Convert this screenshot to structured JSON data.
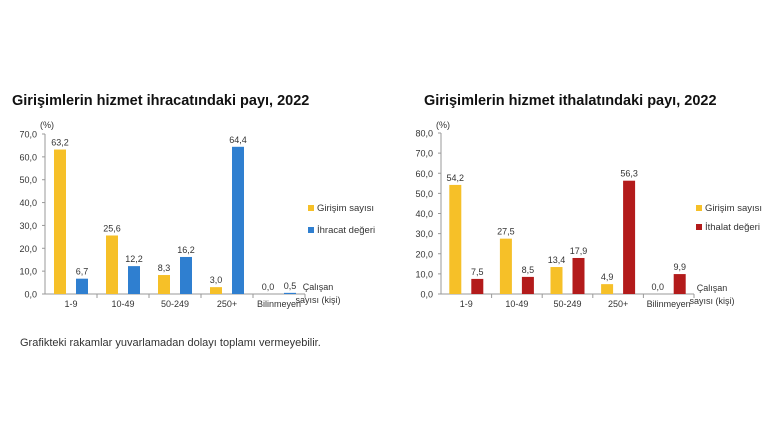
{
  "chart_data": [
    {
      "type": "bar",
      "title": "Girişimlerin hizmet ihracatındaki payı, 2022",
      "ylabel": "(%)",
      "xlabel": [
        "Çalışan",
        "sayısı (kişi)"
      ],
      "ylim": [
        0,
        70
      ],
      "yticks": [
        "0,0",
        "10,0",
        "20,0",
        "30,0",
        "40,0",
        "50,0",
        "60,0",
        "70,0"
      ],
      "categories": [
        "1-9",
        "10-49",
        "50-249",
        "250+",
        "Bilinmeyen"
      ],
      "series": [
        {
          "name": "Girişim sayısı",
          "color": "#f6c028",
          "values": [
            63.2,
            25.6,
            8.3,
            3.0,
            0.0
          ],
          "labels": [
            "63,2",
            "25,6",
            "8,3",
            "3,0",
            "0,0"
          ]
        },
        {
          "name": "İhracat değeri",
          "color": "#2f7fd0",
          "values": [
            6.7,
            12.2,
            16.2,
            64.4,
            0.5
          ],
          "labels": [
            "6,7",
            "12,2",
            "16,2",
            "64,4",
            "0,5"
          ]
        }
      ],
      "legend": "right"
    },
    {
      "type": "bar",
      "title": "Girişimlerin hizmet ithalatındaki payı, 2022",
      "ylabel": "(%)",
      "xlabel": [
        "Çalışan",
        "sayısı (kişi)"
      ],
      "ylim": [
        0,
        80
      ],
      "yticks": [
        "0,0",
        "10,0",
        "20,0",
        "30,0",
        "40,0",
        "50,0",
        "60,0",
        "70,0",
        "80,0"
      ],
      "categories": [
        "1-9",
        "10-49",
        "50-249",
        "250+",
        "Bilinmeyen"
      ],
      "series": [
        {
          "name": "Girişim sayısı",
          "color": "#f6c028",
          "values": [
            54.2,
            27.5,
            13.4,
            4.9,
            0.0
          ],
          "labels": [
            "54,2",
            "27,5",
            "13,4",
            "4,9",
            "0,0"
          ]
        },
        {
          "name": "İthalat değeri",
          "color": "#b31b1b",
          "values": [
            7.5,
            8.5,
            17.9,
            56.3,
            9.9
          ],
          "labels": [
            "7,5",
            "8,5",
            "17,9",
            "56,3",
            "9,9"
          ]
        }
      ],
      "legend": "right"
    }
  ],
  "footnote": "Grafikteki rakamlar yuvarlamadan dolayı toplamı vermeyebilir."
}
